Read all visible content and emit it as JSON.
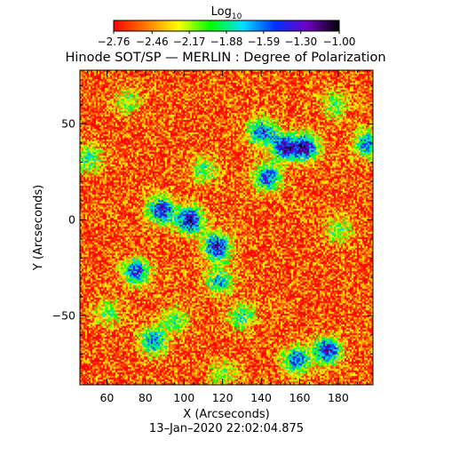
{
  "chart_data": {
    "type": "heatmap",
    "title": "Hinode SOT/SP — MERLIN : Degree of Polarization",
    "xlabel": "X (Arcseconds)",
    "ylabel": "Y (Arcseconds)",
    "footer": "13–Jan–2020 22:02:04.875",
    "xlim": [
      46,
      198
    ],
    "ylim": [
      -86,
      78
    ],
    "xticks": [
      60,
      80,
      100,
      120,
      140,
      160,
      180
    ],
    "yticks": [
      50,
      0,
      -50
    ],
    "xtick_labels": [
      "60",
      "80",
      "100",
      "120",
      "140",
      "160",
      "180"
    ],
    "ytick_labels": [
      "50",
      "0",
      "−50"
    ],
    "colorbar": {
      "label_base": "Log",
      "label_sub": "10",
      "min": -2.76,
      "max": -1.0,
      "tick_values": [
        -2.76,
        -2.46,
        -2.17,
        -1.88,
        -1.59,
        -1.3,
        -1.0
      ],
      "tick_labels": [
        "−2.76",
        "−2.46",
        "−2.17",
        "−1.88",
        "−1.59",
        "−1.30",
        "−1.00"
      ],
      "colors": [
        "#ff0000",
        "#ff7a00",
        "#ffff00",
        "#00ff00",
        "#00e0ff",
        "#0030ff",
        "#7000c0",
        "#000000"
      ]
    },
    "background_level": -2.6,
    "features": [
      {
        "x": 103,
        "y": 0,
        "level": -1.25
      },
      {
        "x": 117,
        "y": -14,
        "level": -1.3
      },
      {
        "x": 88,
        "y": 5,
        "level": -1.35
      },
      {
        "x": 143,
        "y": 22,
        "level": -1.45
      },
      {
        "x": 152,
        "y": 38,
        "level": -1.4
      },
      {
        "x": 163,
        "y": 38,
        "level": -1.35
      },
      {
        "x": 140,
        "y": 46,
        "level": -1.5
      },
      {
        "x": 75,
        "y": -27,
        "level": -1.45
      },
      {
        "x": 174,
        "y": -68,
        "level": -1.35
      },
      {
        "x": 158,
        "y": -73,
        "level": -1.5
      },
      {
        "x": 84,
        "y": -63,
        "level": -1.6
      },
      {
        "x": 118,
        "y": -32,
        "level": -1.75
      },
      {
        "x": 130,
        "y": -50,
        "level": -1.9
      },
      {
        "x": 50,
        "y": 32,
        "level": -1.9
      },
      {
        "x": 195,
        "y": 40,
        "level": -1.6
      },
      {
        "x": 110,
        "y": 26,
        "level": -1.95
      },
      {
        "x": 180,
        "y": -5,
        "level": -2.0
      },
      {
        "x": 60,
        "y": -48,
        "level": -2.0
      },
      {
        "x": 95,
        "y": -52,
        "level": -1.95
      },
      {
        "x": 178,
        "y": 60,
        "level": -2.0
      },
      {
        "x": 70,
        "y": 62,
        "level": -2.05
      },
      {
        "x": 120,
        "y": -80,
        "level": -2.05
      }
    ]
  }
}
